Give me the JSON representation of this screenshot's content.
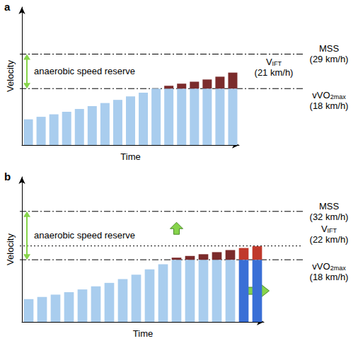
{
  "chart_data": [
    {
      "type": "bar",
      "title": "a",
      "xlabel": "Time",
      "ylabel": "Velocity",
      "stacked": true,
      "grid": false,
      "tick_labels": false,
      "ylim": [
        0,
        44
      ],
      "categories": [
        null,
        null,
        null,
        null,
        null,
        null,
        null,
        null,
        null,
        null,
        null,
        null,
        null,
        null,
        null,
        null,
        null
      ],
      "series": [
        {
          "color": "#a9cdee",
          "values": [
            8.2,
            9.0,
            9.8,
            10.6,
            11.5,
            12.4,
            13.4,
            14.4,
            15.5,
            16.7,
            18,
            18,
            18,
            18,
            18,
            18,
            18
          ]
        },
        {
          "color": "#7b2b2b",
          "values": [
            null,
            null,
            null,
            null,
            null,
            null,
            null,
            null,
            null,
            null,
            null,
            0.9,
            1.6,
            2.2,
            2.9,
            3.8,
            5.1
          ]
        }
      ],
      "reference_lines": [
        {
          "name": "MSS",
          "value": 29,
          "label": "(29 km/h)",
          "line_style": "dashdot"
        },
        {
          "name": "V",
          "subscript": "IFT",
          "value": 21,
          "label": "(21 km/h)",
          "line_style": "none"
        },
        {
          "name": "vVO",
          "subscript": "2max",
          "value": 18,
          "label": "(18 km/h)",
          "line_style": "dashdot"
        }
      ],
      "annotations": [
        {
          "text": "anaerobic speed reserve",
          "from": 18,
          "to": 29
        }
      ]
    },
    {
      "type": "bar",
      "title": "b",
      "xlabel": "Time",
      "ylabel": "Velocity",
      "stacked": true,
      "grid": false,
      "tick_labels": false,
      "ylim": [
        0,
        42
      ],
      "categories": [
        null,
        null,
        null,
        null,
        null,
        null,
        null,
        null,
        null,
        null,
        null,
        null,
        null,
        null,
        null,
        null,
        null,
        null
      ],
      "series": [
        {
          "colors": [
            "#a9cdee",
            "#a9cdee",
            "#a9cdee",
            "#a9cdee",
            "#a9cdee",
            "#a9cdee",
            "#a9cdee",
            "#a9cdee",
            "#a9cdee",
            "#a9cdee",
            "#a9cdee",
            "#a9cdee",
            "#a9cdee",
            "#a9cdee",
            "#a9cdee",
            "#a9cdee",
            "#3a6fd6",
            "#3a6fd6"
          ],
          "values": [
            6.6,
            7.2,
            7.9,
            8.6,
            9.4,
            10.3,
            11.3,
            12.4,
            13.7,
            15.2,
            16.7,
            18,
            18,
            18,
            18,
            18,
            18,
            18
          ]
        },
        {
          "colors": [
            "#7b2b2b",
            "#7b2b2b",
            "#7b2b2b",
            "#7b2b2b",
            "#7b2b2b",
            "#7b2b2b",
            "#7b2b2b",
            "#7b2b2b",
            "#7b2b2b",
            "#7b2b2b",
            "#7b2b2b",
            "#7b2b2b",
            "#7b2b2b",
            "#7b2b2b",
            "#7b2b2b",
            "#7b2b2b",
            "#c0392b",
            "#c0392b"
          ],
          "values": [
            null,
            null,
            null,
            null,
            null,
            null,
            null,
            null,
            null,
            null,
            null,
            0.6,
            1.1,
            1.6,
            2.2,
            2.8,
            3.4,
            3.9
          ]
        }
      ],
      "reference_lines": [
        {
          "name": "MSS",
          "value": 32,
          "label": "(32 km/h)",
          "line_style": "dashdot"
        },
        {
          "name": "V",
          "subscript": "IFT",
          "value": 22,
          "label": "(22 km/h)",
          "line_style": "dotted"
        },
        {
          "name": "vVO",
          "subscript": "2max",
          "value": 18,
          "label": "(18 km/h)",
          "line_style": "dashdot"
        }
      ],
      "annotations": [
        {
          "text": "anaerobic speed reserve",
          "from": 18,
          "to": 32
        }
      ]
    }
  ]
}
